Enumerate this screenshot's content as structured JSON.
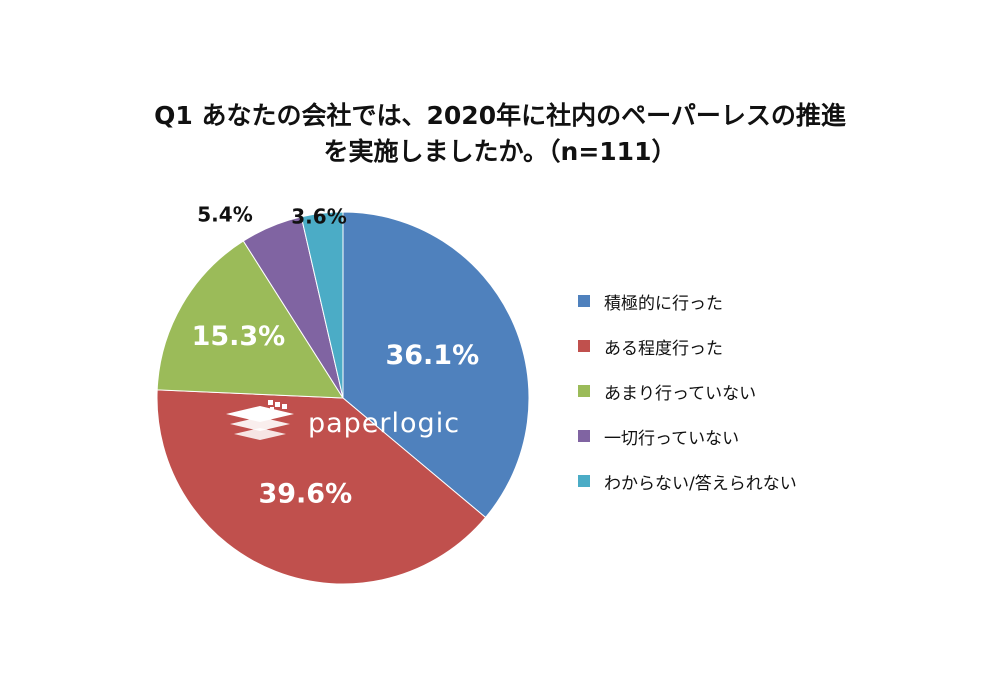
{
  "chart_data": {
    "type": "pie",
    "title_lines": [
      "Q1 あなたの会社では、2020年に社内のペーパーレスの推進",
      "を実施しましたか。（n=111）"
    ],
    "slices": [
      {
        "label": "積極的に行った",
        "value": 36.1,
        "display": "36.1%",
        "color": "#4f81bd"
      },
      {
        "label": "ある程度行った",
        "value": 39.6,
        "display": "39.6%",
        "color": "#c0504d"
      },
      {
        "label": "あまり行っていない",
        "value": 15.3,
        "display": "15.3%",
        "color": "#9bbb59"
      },
      {
        "label": "一切行っていない",
        "value": 5.4,
        "display": "5.4%",
        "color": "#8064a2"
      },
      {
        "label": "わからない/答えられない",
        "value": 3.6,
        "display": "3.6%",
        "color": "#4bacc6"
      }
    ],
    "legend_position": "right"
  },
  "watermark": {
    "text": "paperlogic"
  }
}
